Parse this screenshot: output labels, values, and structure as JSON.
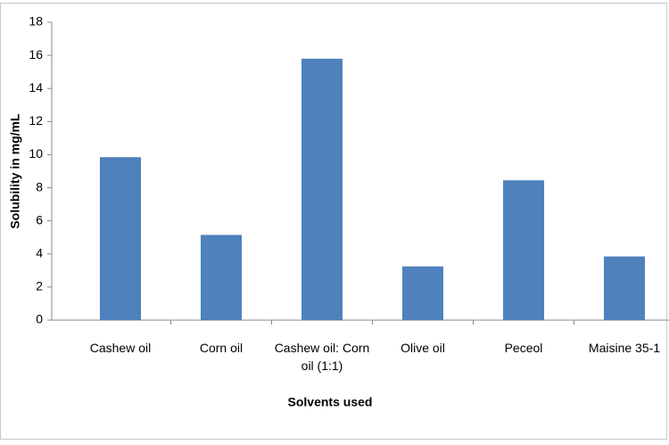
{
  "chart_data": {
    "type": "bar",
    "y_label": "Solubility in mg/mL",
    "x_label": "Solvents used",
    "categories": [
      "Cashew oil",
      "Corn oil",
      "Cashew oil: Corn oil (1:1)",
      "Olive oil",
      "Peceol",
      "Maisine 35-1"
    ],
    "values": [
      9.85,
      5.15,
      15.8,
      3.25,
      8.45,
      3.85
    ],
    "color": "#4f81bd",
    "ylim": [
      0,
      18
    ],
    "yticks": [
      0,
      2,
      4,
      6,
      8,
      10,
      12,
      14,
      16,
      18
    ],
    "grid": false
  }
}
